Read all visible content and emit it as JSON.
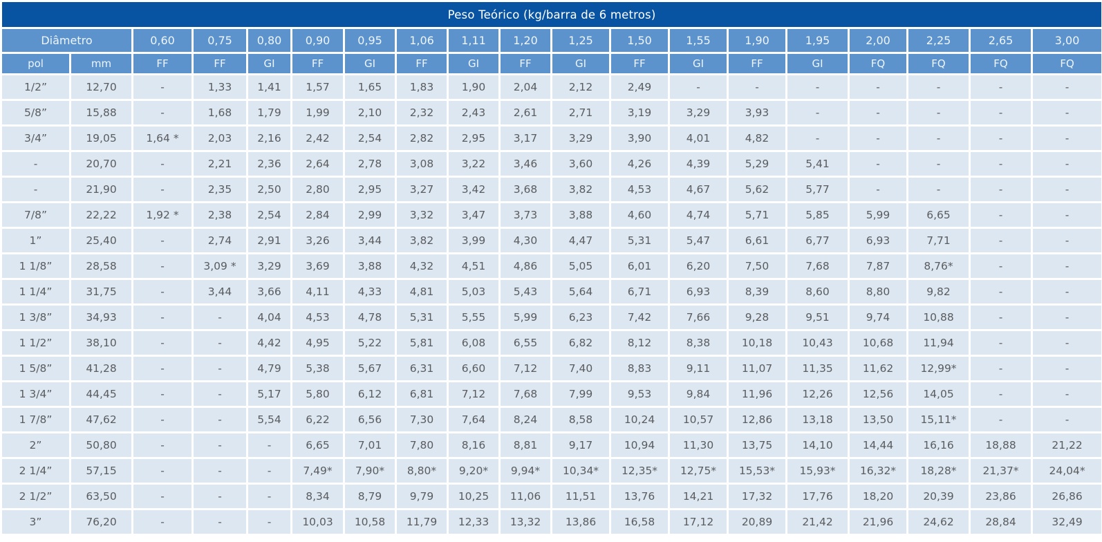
{
  "table": {
    "title": "Peso Teórico (kg/barra de 6 metros)",
    "diameter_header": "Diâmetro",
    "pol_header": "pol",
    "mm_header": "mm",
    "thickness_columns": [
      {
        "thickness": "0,60",
        "material": "FF"
      },
      {
        "thickness": "0,75",
        "material": "FF"
      },
      {
        "thickness": "0,80",
        "material": "GI"
      },
      {
        "thickness": "0,90",
        "material": "FF"
      },
      {
        "thickness": "0,95",
        "material": "GI"
      },
      {
        "thickness": "1,06",
        "material": "FF"
      },
      {
        "thickness": "1,11",
        "material": "GI"
      },
      {
        "thickness": "1,20",
        "material": "FF"
      },
      {
        "thickness": "1,25",
        "material": "GI"
      },
      {
        "thickness": "1,50",
        "material": "FF"
      },
      {
        "thickness": "1,55",
        "material": "GI"
      },
      {
        "thickness": "1,90",
        "material": "FF"
      },
      {
        "thickness": "1,95",
        "material": "GI"
      },
      {
        "thickness": "2,00",
        "material": "FQ"
      },
      {
        "thickness": "2,25",
        "material": "FQ"
      },
      {
        "thickness": "2,65",
        "material": "FQ"
      },
      {
        "thickness": "3,00",
        "material": "FQ"
      }
    ],
    "rows": [
      {
        "pol": "1/2”",
        "mm": "12,70",
        "values": [
          "-",
          "1,33",
          "1,41",
          "1,57",
          "1,65",
          "1,83",
          "1,90",
          "2,04",
          "2,12",
          "2,49",
          "-",
          "-",
          "-",
          "-",
          "-",
          "-",
          "-"
        ]
      },
      {
        "pol": "5/8”",
        "mm": "15,88",
        "values": [
          "-",
          "1,68",
          "1,79",
          "1,99",
          "2,10",
          "2,32",
          "2,43",
          "2,61",
          "2,71",
          "3,19",
          "3,29",
          "3,93",
          "-",
          "-",
          "-",
          "-",
          "-"
        ]
      },
      {
        "pol": "3/4”",
        "mm": "19,05",
        "values": [
          "1,64 *",
          "2,03",
          "2,16",
          "2,42",
          "2,54",
          "2,82",
          "2,95",
          "3,17",
          "3,29",
          "3,90",
          "4,01",
          "4,82",
          "-",
          "-",
          "-",
          "-",
          "-"
        ]
      },
      {
        "pol": "-",
        "mm": "20,70",
        "values": [
          "-",
          "2,21",
          "2,36",
          "2,64",
          "2,78",
          "3,08",
          "3,22",
          "3,46",
          "3,60",
          "4,26",
          "4,39",
          "5,29",
          "5,41",
          "-",
          "-",
          "-",
          "-"
        ]
      },
      {
        "pol": "-",
        "mm": "21,90",
        "values": [
          "-",
          "2,35",
          "2,50",
          "2,80",
          "2,95",
          "3,27",
          "3,42",
          "3,68",
          "3,82",
          "4,53",
          "4,67",
          "5,62",
          "5,77",
          "-",
          "-",
          "-",
          "-"
        ]
      },
      {
        "pol": "7/8”",
        "mm": "22,22",
        "values": [
          "1,92 *",
          "2,38",
          "2,54",
          "2,84",
          "2,99",
          "3,32",
          "3,47",
          "3,73",
          "3,88",
          "4,60",
          "4,74",
          "5,71",
          "5,85",
          "5,99",
          "6,65",
          "-",
          "-"
        ]
      },
      {
        "pol": "1”",
        "mm": "25,40",
        "values": [
          "-",
          "2,74",
          "2,91",
          "3,26",
          "3,44",
          "3,82",
          "3,99",
          "4,30",
          "4,47",
          "5,31",
          "5,47",
          "6,61",
          "6,77",
          "6,93",
          "7,71",
          "-",
          "-"
        ]
      },
      {
        "pol": "1 1/8”",
        "mm": "28,58",
        "values": [
          "-",
          "3,09 *",
          "3,29",
          "3,69",
          "3,88",
          "4,32",
          "4,51",
          "4,86",
          "5,05",
          "6,01",
          "6,20",
          "7,50",
          "7,68",
          "7,87",
          "8,76*",
          "-",
          "-"
        ]
      },
      {
        "pol": "1 1/4”",
        "mm": "31,75",
        "values": [
          "-",
          "3,44",
          "3,66",
          "4,11",
          "4,33",
          "4,81",
          "5,03",
          "5,43",
          "5,64",
          "6,71",
          "6,93",
          "8,39",
          "8,60",
          "8,80",
          "9,82",
          "-",
          "-"
        ]
      },
      {
        "pol": "1 3/8”",
        "mm": "34,93",
        "values": [
          "-",
          "-",
          "4,04",
          "4,53",
          "4,78",
          "5,31",
          "5,55",
          "5,99",
          "6,23",
          "7,42",
          "7,66",
          "9,28",
          "9,51",
          "9,74",
          "10,88",
          "-",
          "-"
        ]
      },
      {
        "pol": "1 1/2”",
        "mm": "38,10",
        "values": [
          "-",
          "-",
          "4,42",
          "4,95",
          "5,22",
          "5,81",
          "6,08",
          "6,55",
          "6,82",
          "8,12",
          "8,38",
          "10,18",
          "10,43",
          "10,68",
          "11,94",
          "-",
          "-"
        ]
      },
      {
        "pol": "1 5/8”",
        "mm": "41,28",
        "values": [
          "-",
          "-",
          "4,79",
          "5,38",
          "5,67",
          "6,31",
          "6,60",
          "7,12",
          "7,40",
          "8,83",
          "9,11",
          "11,07",
          "11,35",
          "11,62",
          "12,99*",
          "-",
          "-"
        ]
      },
      {
        "pol": "1 3/4”",
        "mm": "44,45",
        "values": [
          "-",
          "-",
          "5,17",
          "5,80",
          "6,12",
          "6,81",
          "7,12",
          "7,68",
          "7,99",
          "9,53",
          "9,84",
          "11,96",
          "12,26",
          "12,56",
          "14,05",
          "-",
          "-"
        ]
      },
      {
        "pol": "1 7/8”",
        "mm": "47,62",
        "values": [
          "-",
          "-",
          "5,54",
          "6,22",
          "6,56",
          "7,30",
          "7,64",
          "8,24",
          "8,58",
          "10,24",
          "10,57",
          "12,86",
          "13,18",
          "13,50",
          "15,11*",
          "-",
          "-"
        ]
      },
      {
        "pol": "2”",
        "mm": "50,80",
        "values": [
          "-",
          "-",
          "-",
          "6,65",
          "7,01",
          "7,80",
          "8,16",
          "8,81",
          "9,17",
          "10,94",
          "11,30",
          "13,75",
          "14,10",
          "14,44",
          "16,16",
          "18,88",
          "21,22"
        ]
      },
      {
        "pol": "2 1/4”",
        "mm": "57,15",
        "values": [
          "-",
          "-",
          "-",
          "7,49*",
          "7,90*",
          "8,80*",
          "9,20*",
          "9,94*",
          "10,34*",
          "12,35*",
          "12,75*",
          "15,53*",
          "15,93*",
          "16,32*",
          "18,28*",
          "21,37*",
          "24,04*"
        ]
      },
      {
        "pol": "2 1/2”",
        "mm": "63,50",
        "values": [
          "-",
          "-",
          "-",
          "8,34",
          "8,79",
          "9,79",
          "10,25",
          "11,06",
          "11,51",
          "13,76",
          "14,21",
          "17,32",
          "17,76",
          "18,20",
          "20,39",
          "23,86",
          "26,86"
        ]
      },
      {
        "pol": "3”",
        "mm": "76,20",
        "values": [
          "-",
          "-",
          "-",
          "10,03",
          "10,58",
          "11,79",
          "12,33",
          "13,32",
          "13,86",
          "16,58",
          "17,12",
          "20,89",
          "21,42",
          "21,96",
          "24,62",
          "28,84",
          "32,49"
        ]
      }
    ]
  },
  "colors": {
    "title_bg": "#0853a2",
    "header_bg": "#5d93cc",
    "cell_bg": "#dce7f2",
    "cell_text": "#5b5c5e",
    "header_text": "#eef5fb",
    "grid": "#ffffff"
  }
}
